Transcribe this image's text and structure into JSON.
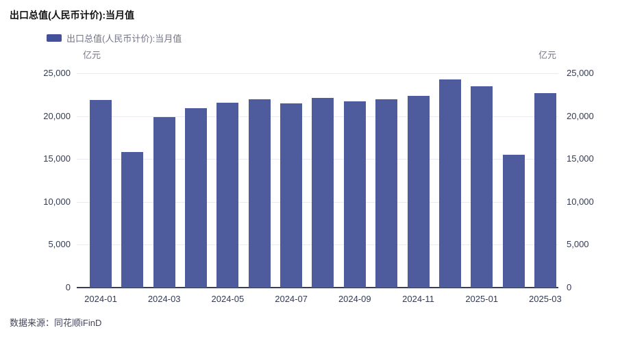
{
  "page": {
    "title": "出口总值(人民币计价):当月值",
    "legend_label": "出口总值(人民币计价):当月值",
    "unit_left": "亿元",
    "unit_right": "亿元",
    "source": "数据来源：同花顺iFinD"
  },
  "colors": {
    "bar": "#4e5b9c",
    "legend_swatch": "#44509a",
    "gridline": "#e8eaf5",
    "axis_line": "#353c5c",
    "tick_label": "#333a52",
    "muted_text": "#73738a"
  },
  "chart_data": {
    "type": "bar",
    "title": "出口总值(人民币计价):当月值",
    "legend": [
      "出口总值(人民币计价):当月值"
    ],
    "ylabel": "亿元",
    "categories": [
      "2024-01",
      "2024-02",
      "2024-03",
      "2024-04",
      "2024-05",
      "2024-06",
      "2024-07",
      "2024-08",
      "2024-09",
      "2024-10",
      "2024-11",
      "2024-12",
      "2025-01",
      "2025-02",
      "2025-03"
    ],
    "values": [
      21900,
      15800,
      19900,
      20900,
      21550,
      21950,
      21500,
      22100,
      21750,
      22000,
      22400,
      24250,
      23500,
      15500,
      22650
    ],
    "x_tick_labels": [
      "2024-01",
      "2024-03",
      "2024-05",
      "2024-07",
      "2024-09",
      "2024-11",
      "2025-01",
      "2025-03"
    ],
    "y_ticks": [
      0,
      5000,
      10000,
      15000,
      20000,
      25000
    ],
    "ylim": [
      0,
      25000
    ],
    "grid": true,
    "legend_position": "top-left"
  }
}
